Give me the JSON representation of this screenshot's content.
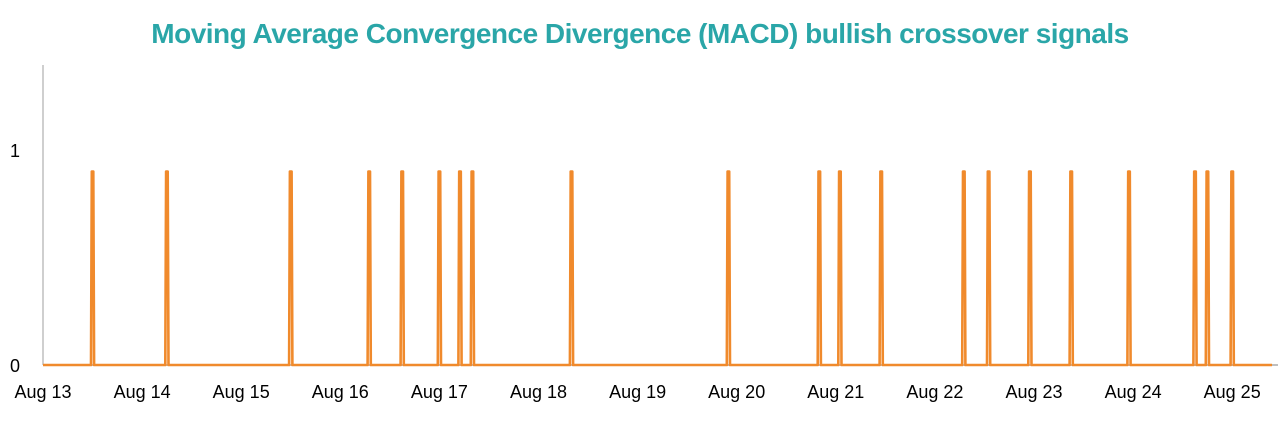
{
  "colors": {
    "title": "#2aa6a8",
    "series": "#f08a2c",
    "axis": "#bfbfbf",
    "tick_text": "#000000"
  },
  "chart_data": {
    "type": "line",
    "title": "Moving Average Convergence Divergence (MACD) bullish crossover signals",
    "xlabel": "",
    "ylabel": "",
    "x_tick_labels": [
      "Aug 13",
      "Aug 14",
      "Aug 15",
      "Aug 16",
      "Aug 17",
      "Aug 18",
      "Aug 19",
      "Aug 20",
      "Aug 21",
      "Aug 22",
      "Aug 23",
      "Aug 24",
      "Aug 25"
    ],
    "y_tick_labels": [
      "0",
      "1"
    ],
    "xlim": [
      "2024-08-13",
      "2024-08-25 12:00"
    ],
    "ylim": [
      0,
      1
    ],
    "grid": false,
    "legend": "none",
    "signal_value": 0.9,
    "signal_times": [
      "2024-08-13 12:00",
      "2024-08-14 06:00",
      "2024-08-15 12:00",
      "2024-08-16 07:00",
      "2024-08-16 15:00",
      "2024-08-17 00:00",
      "2024-08-17 05:00",
      "2024-08-17 08:00",
      "2024-08-18 08:00",
      "2024-08-19 22:00",
      "2024-08-20 20:00",
      "2024-08-21 01:00",
      "2024-08-21 11:00",
      "2024-08-22 07:00",
      "2024-08-22 13:00",
      "2024-08-22 23:00",
      "2024-08-23 09:00",
      "2024-08-23 23:00",
      "2024-08-24 15:00",
      "2024-08-24 18:00",
      "2024-08-25 00:00"
    ]
  }
}
